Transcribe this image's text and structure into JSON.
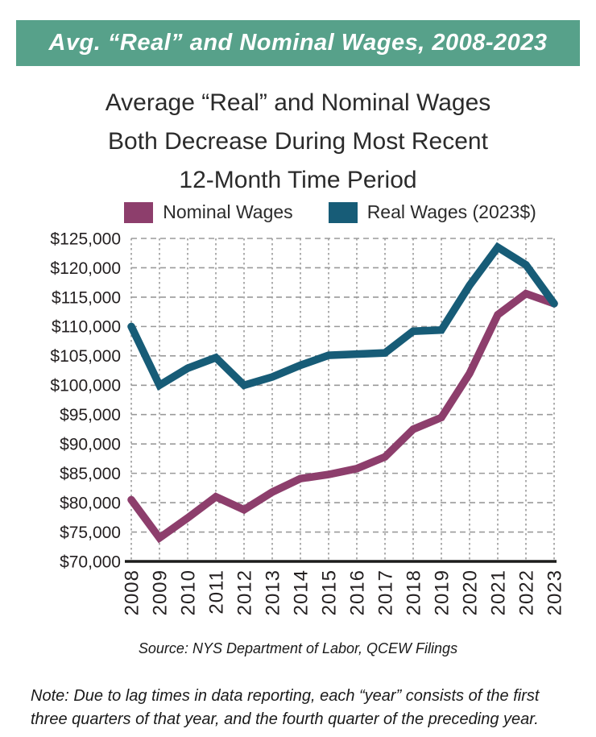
{
  "banner": {
    "title": "Avg. “Real” and Nominal Wages, 2008-2023"
  },
  "title": {
    "lines": [
      "Average “Real”  and Nominal Wages",
      "Both Decrease During Most Recent",
      "12-Month Time Period"
    ]
  },
  "legend": {
    "items": [
      {
        "label": "Nominal Wages",
        "color": "#8d3e6c"
      },
      {
        "label": "Real Wages (2023$)",
        "color": "#175c77"
      }
    ]
  },
  "chart_data": {
    "type": "line",
    "title": "Average “Real” and Nominal Wages Both Decrease During Most Recent 12-Month Time Period",
    "x": [
      2008,
      2009,
      2010,
      2011,
      2012,
      2013,
      2014,
      2015,
      2016,
      2017,
      2018,
      2019,
      2020,
      2021,
      2022,
      2023
    ],
    "series": [
      {
        "name": "Nominal Wages",
        "color": "#8d3e6c",
        "values": [
          80500,
          74000,
          77400,
          81000,
          78800,
          81800,
          84100,
          84800,
          85800,
          87800,
          92500,
          94500,
          102000,
          112000,
          115600,
          113900
        ]
      },
      {
        "name": "Real Wages (2023$)",
        "color": "#175c77",
        "values": [
          110000,
          100000,
          102900,
          104700,
          100000,
          101400,
          103400,
          105100,
          105300,
          105500,
          109200,
          109400,
          117000,
          123500,
          120500,
          113900
        ]
      }
    ],
    "ylim": [
      70000,
      125000
    ],
    "ytick_step": 5000,
    "ytick_format": "$#,##0",
    "xlabel_rotation": -90,
    "grid": "dashed",
    "legend_position": "top"
  },
  "colors": {
    "banner_bg": "#57a18a",
    "banner_text": "#ffffff",
    "title_text": "#2b2b2b",
    "axis_text": "#231f20",
    "grid": "#9a9a9a",
    "axis_line": "#1d1d1b"
  },
  "source": {
    "text": "Source: NYS Department of Labor, QCEW Filings"
  },
  "note": {
    "lines": [
      "Note: Due to lag times in data reporting, each “year” consists of the first",
      "three quarters of that year, and the fourth quarter of the preceding year."
    ]
  }
}
